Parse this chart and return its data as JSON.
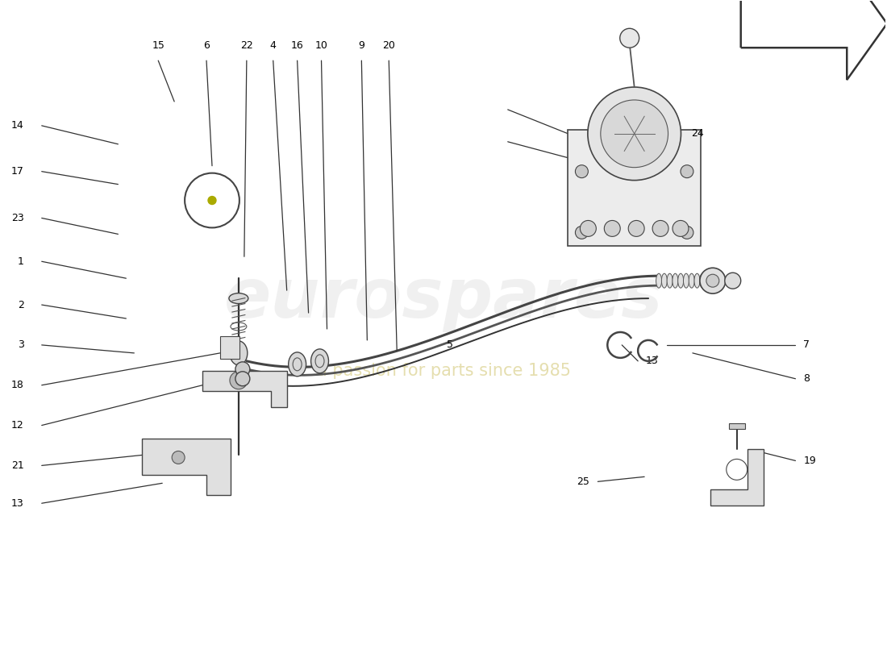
{
  "bg": "#ffffff",
  "lc": "#333333",
  "wm1": "eurospares",
  "wm2": "a passion for parts since 1985",
  "wm_col2": "#d4c97a",
  "left_labels": [
    [
      14,
      0.28,
      6.45,
      1.45,
      6.22
    ],
    [
      17,
      0.28,
      5.88,
      1.45,
      5.72
    ],
    [
      23,
      0.28,
      5.3,
      1.45,
      5.1
    ],
    [
      1,
      0.28,
      4.76,
      1.55,
      4.55
    ],
    [
      2,
      0.28,
      4.22,
      1.55,
      4.05
    ],
    [
      3,
      0.28,
      3.72,
      1.65,
      3.62
    ],
    [
      18,
      0.28,
      3.22,
      2.72,
      3.62
    ],
    [
      12,
      0.28,
      2.72,
      2.5,
      3.22
    ],
    [
      21,
      0.28,
      2.22,
      1.75,
      2.35
    ],
    [
      13,
      0.28,
      1.75,
      2.0,
      2.0
    ]
  ],
  "top_labels": [
    [
      15,
      1.95,
      7.38,
      2.15,
      6.75
    ],
    [
      6,
      2.55,
      7.38,
      2.62,
      5.95
    ],
    [
      22,
      3.05,
      7.38,
      3.02,
      4.82
    ],
    [
      4,
      3.38,
      7.38,
      3.55,
      4.4
    ],
    [
      16,
      3.68,
      7.38,
      3.82,
      4.12
    ],
    [
      10,
      3.98,
      7.38,
      4.05,
      3.92
    ],
    [
      9,
      4.48,
      7.38,
      4.55,
      3.78
    ],
    [
      20,
      4.82,
      7.38,
      4.92,
      3.65
    ]
  ],
  "right_labels": [
    [
      24,
      8.48,
      6.35,
      8.25,
      6.2,
      "left"
    ],
    [
      13,
      7.92,
      3.52,
      7.72,
      3.72,
      "left"
    ],
    [
      7,
      9.88,
      3.72,
      8.28,
      3.72,
      "left"
    ],
    [
      8,
      9.88,
      3.3,
      8.6,
      3.62,
      "left"
    ],
    [
      19,
      9.88,
      2.28,
      9.48,
      2.38,
      "left"
    ],
    [
      25,
      7.42,
      2.02,
      8.0,
      2.08,
      "right"
    ]
  ]
}
